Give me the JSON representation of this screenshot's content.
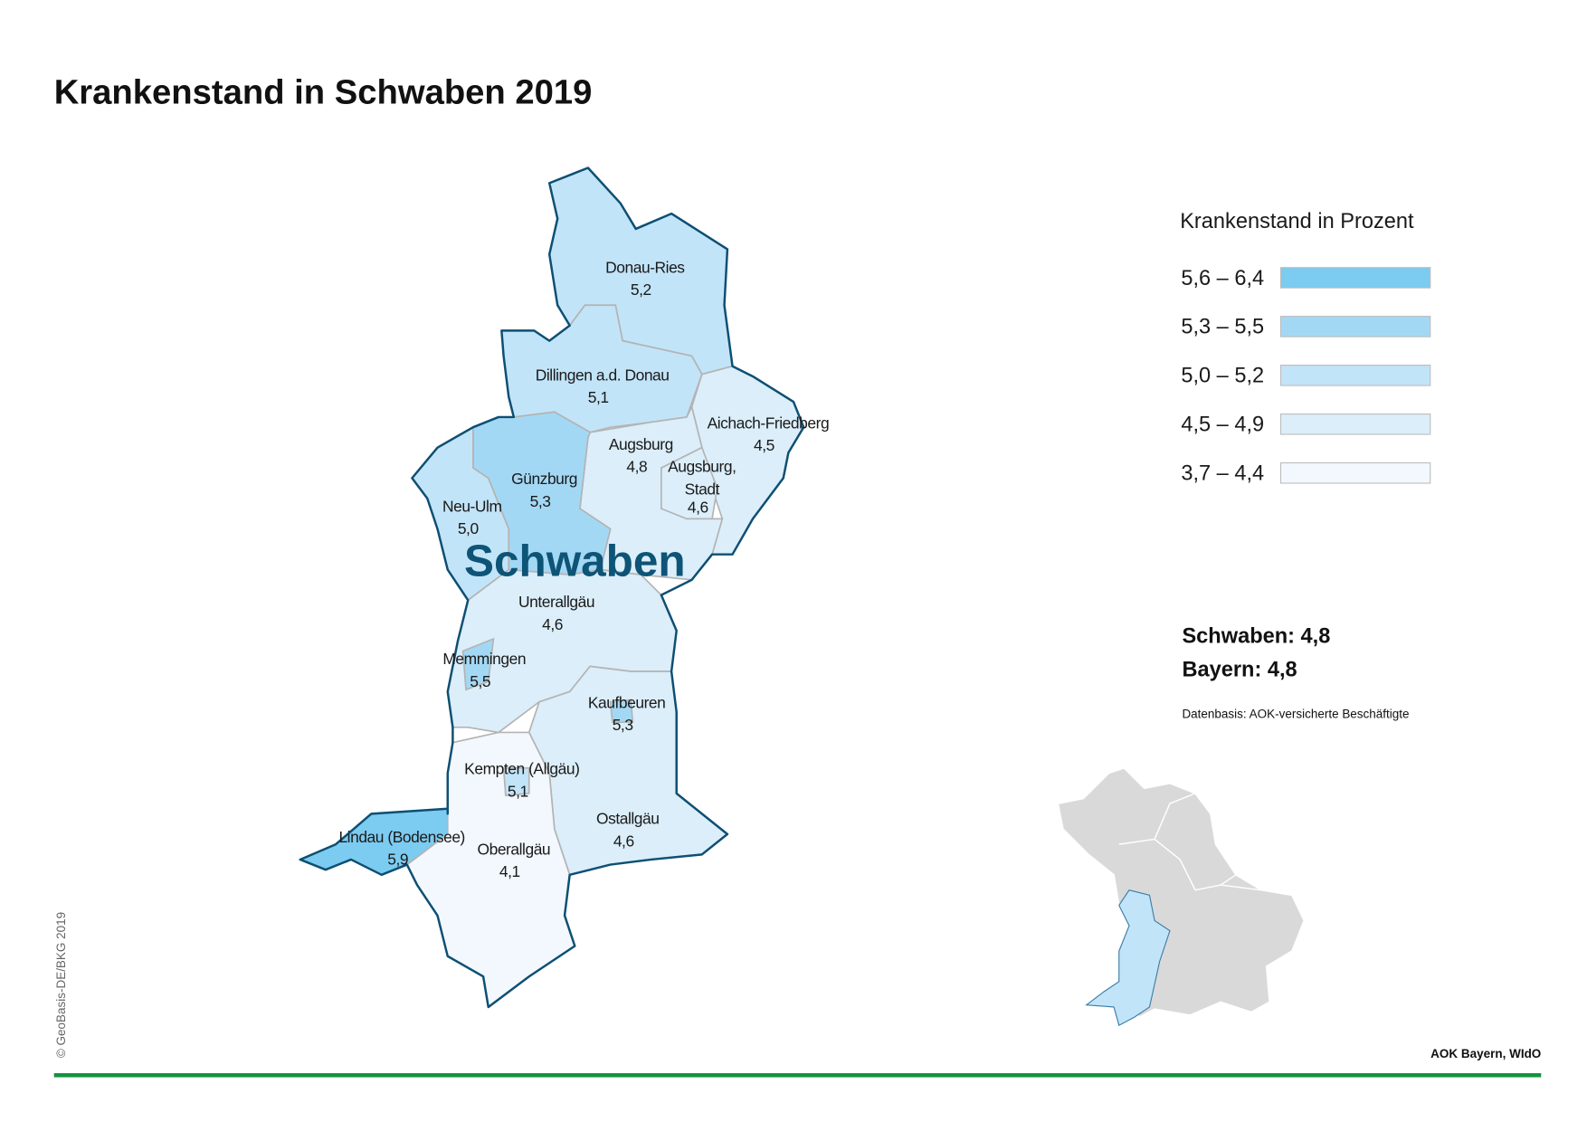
{
  "header": {
    "title": "Krankenstand in Schwaben 2019"
  },
  "map": {
    "region_label": "Schwaben",
    "districts": [
      {
        "name": "Donau-Ries",
        "value": "5,2"
      },
      {
        "name": "Dillingen a.d. Donau",
        "value": "5,1"
      },
      {
        "name": "Aichach-Friedberg",
        "value": "4,5"
      },
      {
        "name": "Augsburg",
        "value": "4,8"
      },
      {
        "name": [
          "Augsburg,",
          "Stadt"
        ],
        "value": "4,6"
      },
      {
        "name": "Günzburg",
        "value": "5,3"
      },
      {
        "name": "Neu-Ulm",
        "value": "5,0"
      },
      {
        "name": "Unterallgäu",
        "value": "4,6"
      },
      {
        "name": "Memmingen",
        "value": "5,5"
      },
      {
        "name": "Kaufbeuren",
        "value": "5,3"
      },
      {
        "name": "Kempten (Allgäu)",
        "value": "5,1"
      },
      {
        "name": "Ostallgäu",
        "value": "4,6"
      },
      {
        "name": "Oberallgäu",
        "value": "4,1"
      },
      {
        "name": "Lindau (Bodensee)",
        "value": "5,9"
      }
    ]
  },
  "legend": {
    "title": "Krankenstand in Prozent",
    "classes": [
      "5,6 – 6,4",
      "5,3 – 5,5",
      "5,0 – 5,2",
      "4,5 – 4,9",
      "3,7 – 4,4"
    ]
  },
  "summary": [
    "Schwaben: 4,8",
    "Bayern: 4,8"
  ],
  "source": "Datenbasis: AOK-versicherte Beschäftigte",
  "copyright": "© GeoBasis-DE/BKG 2019",
  "credit": "AOK Bayern, WIdO"
}
